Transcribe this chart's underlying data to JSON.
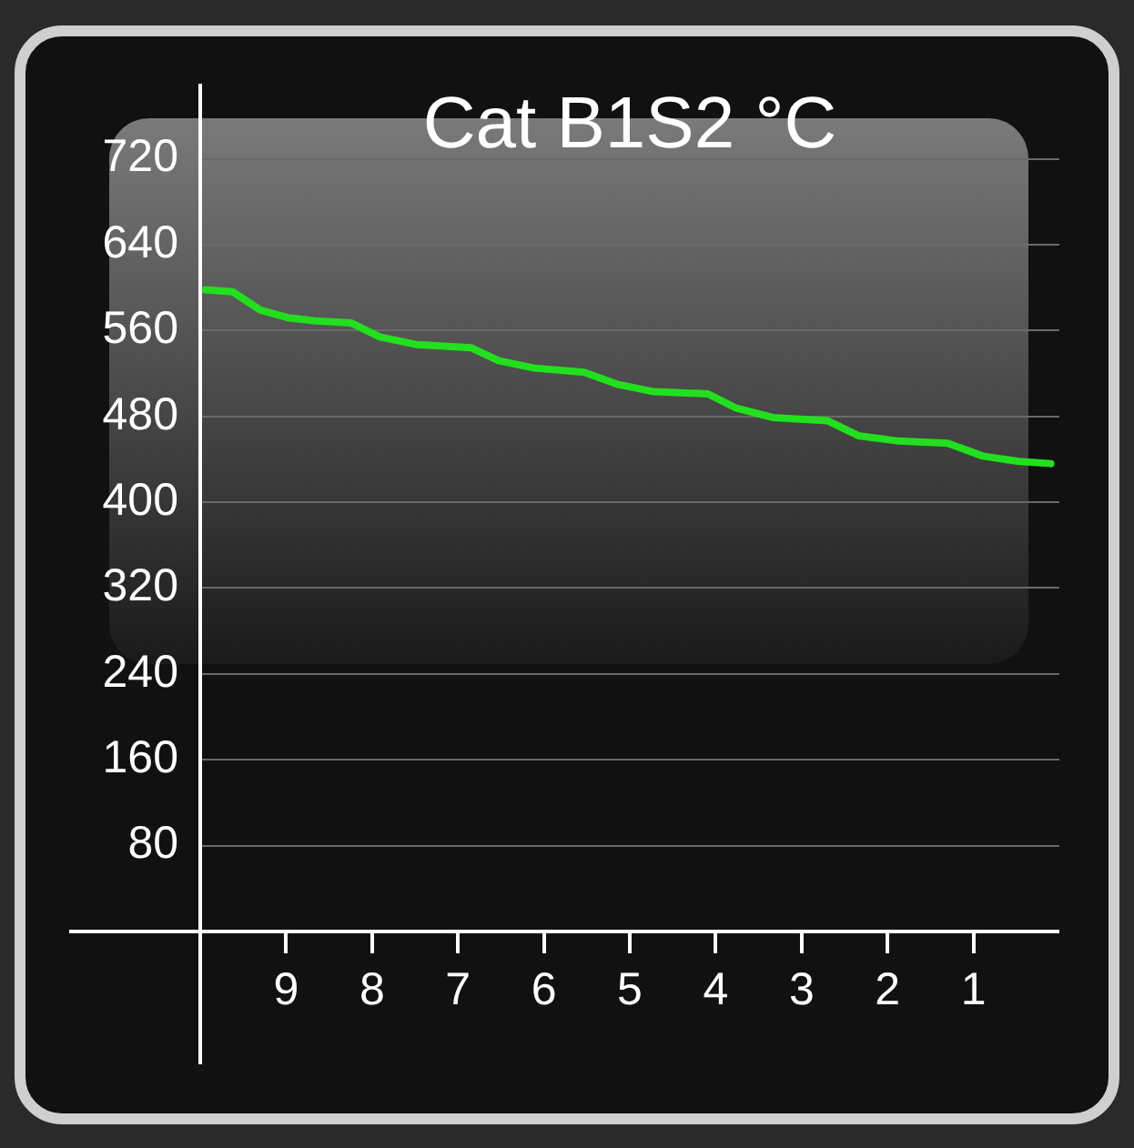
{
  "chart_data": {
    "type": "line",
    "title": "Cat B1S2 °C",
    "series": [
      {
        "color": "#22e01e",
        "x": [
          9.94,
          9.62,
          9.3,
          8.98,
          8.66,
          8.24,
          7.91,
          7.49,
          6.85,
          6.53,
          6.11,
          5.53,
          5.15,
          4.72,
          4.09,
          3.77,
          3.34,
          2.7,
          2.34,
          1.87,
          1.3,
          0.89,
          0.47,
          0.1
        ],
        "values": [
          598,
          596,
          579,
          572,
          569,
          567,
          554,
          547,
          544,
          532,
          525,
          521,
          510,
          503,
          501,
          488,
          479,
          476,
          462,
          457,
          455,
          443,
          438,
          436
        ]
      }
    ],
    "xlim": [
      10,
      0
    ],
    "xticks": [
      9,
      8,
      7,
      6,
      5,
      4,
      3,
      2,
      1
    ],
    "ylim": [
      0,
      790
    ],
    "yticks": [
      {
        "value": 0,
        "label": null
      },
      80,
      160,
      240,
      320,
      400,
      480,
      560,
      640,
      720
    ],
    "grid": "y",
    "legend": false,
    "marker": "none",
    "line_style": "solid"
  }
}
